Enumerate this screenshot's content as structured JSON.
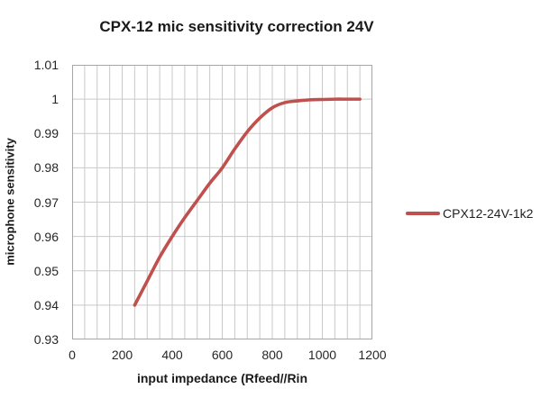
{
  "colors": {
    "series": "#c0504d",
    "grid": "#c9c9c9",
    "axis_border": "#a6a6a6",
    "text": "#1a1a1a"
  },
  "legend": {
    "label": "CPX12-24V-1k2"
  },
  "chart_data": {
    "type": "line",
    "title": "CPX-12 mic sensitivity correction 24V",
    "xlabel": "input impedance (Rfeed//Rin",
    "ylabel": "microphone sensitivity",
    "xlim": [
      0,
      1200
    ],
    "ylim": [
      0.93,
      1.01
    ],
    "x_ticks": [
      0,
      200,
      400,
      600,
      800,
      1000,
      1200
    ],
    "y_tick_labels": [
      "1.01",
      "1",
      "0.99",
      "0.98",
      "0.97",
      "0.96",
      "0.95",
      "0.94",
      "0.93"
    ],
    "y_tick_values": [
      1.01,
      1.0,
      0.99,
      0.98,
      0.97,
      0.96,
      0.95,
      0.94,
      0.93
    ],
    "x_minor_grid_step": 50,
    "y_grid_step": 0.01,
    "grid": true,
    "legend_position": "right",
    "series": [
      {
        "name": "CPX12-24V-1k2",
        "color": "#c0504d",
        "x": [
          250,
          300,
          350,
          400,
          450,
          500,
          550,
          600,
          650,
          700,
          750,
          800,
          850,
          900,
          950,
          1000,
          1050,
          1100,
          1150
        ],
        "y": [
          0.94,
          0.947,
          0.954,
          0.96,
          0.9655,
          0.9705,
          0.9755,
          0.98,
          0.9855,
          0.9905,
          0.9945,
          0.9975,
          0.999,
          0.9995,
          0.9998,
          0.9999,
          1.0,
          1.0,
          1.0
        ]
      }
    ]
  }
}
